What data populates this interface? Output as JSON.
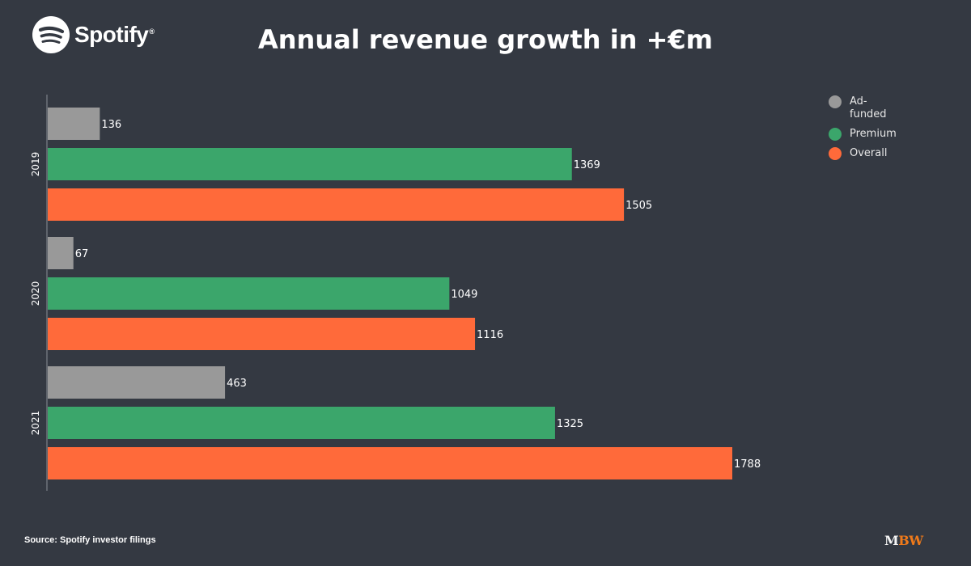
{
  "brand": {
    "name": "Spotify",
    "reg": "®"
  },
  "header": {
    "title": "Annual revenue growth in +€m"
  },
  "footer": {
    "source": "Source: Spotify investor filings",
    "mbw_m": "M",
    "mbw_bw": "BW"
  },
  "colors": {
    "background": "#343942",
    "ad_funded": "#999999",
    "premium": "#3ba66b",
    "overall": "#ff6a3a"
  },
  "chart_data": {
    "type": "bar",
    "orientation": "horizontal",
    "title": "Annual revenue growth in +€m",
    "categories": [
      "2019",
      "2020",
      "2021"
    ],
    "series": [
      {
        "name": "Ad-funded",
        "color": "#999999",
        "values": [
          136,
          67,
          463
        ]
      },
      {
        "name": "Premium",
        "color": "#3ba66b",
        "values": [
          1369,
          1049,
          1325
        ]
      },
      {
        "name": "Overall",
        "color": "#ff6a3a",
        "values": [
          1505,
          1116,
          1788
        ]
      }
    ],
    "xlim": [
      0,
      1788
    ],
    "grid": false,
    "legend_position": "top-right"
  }
}
